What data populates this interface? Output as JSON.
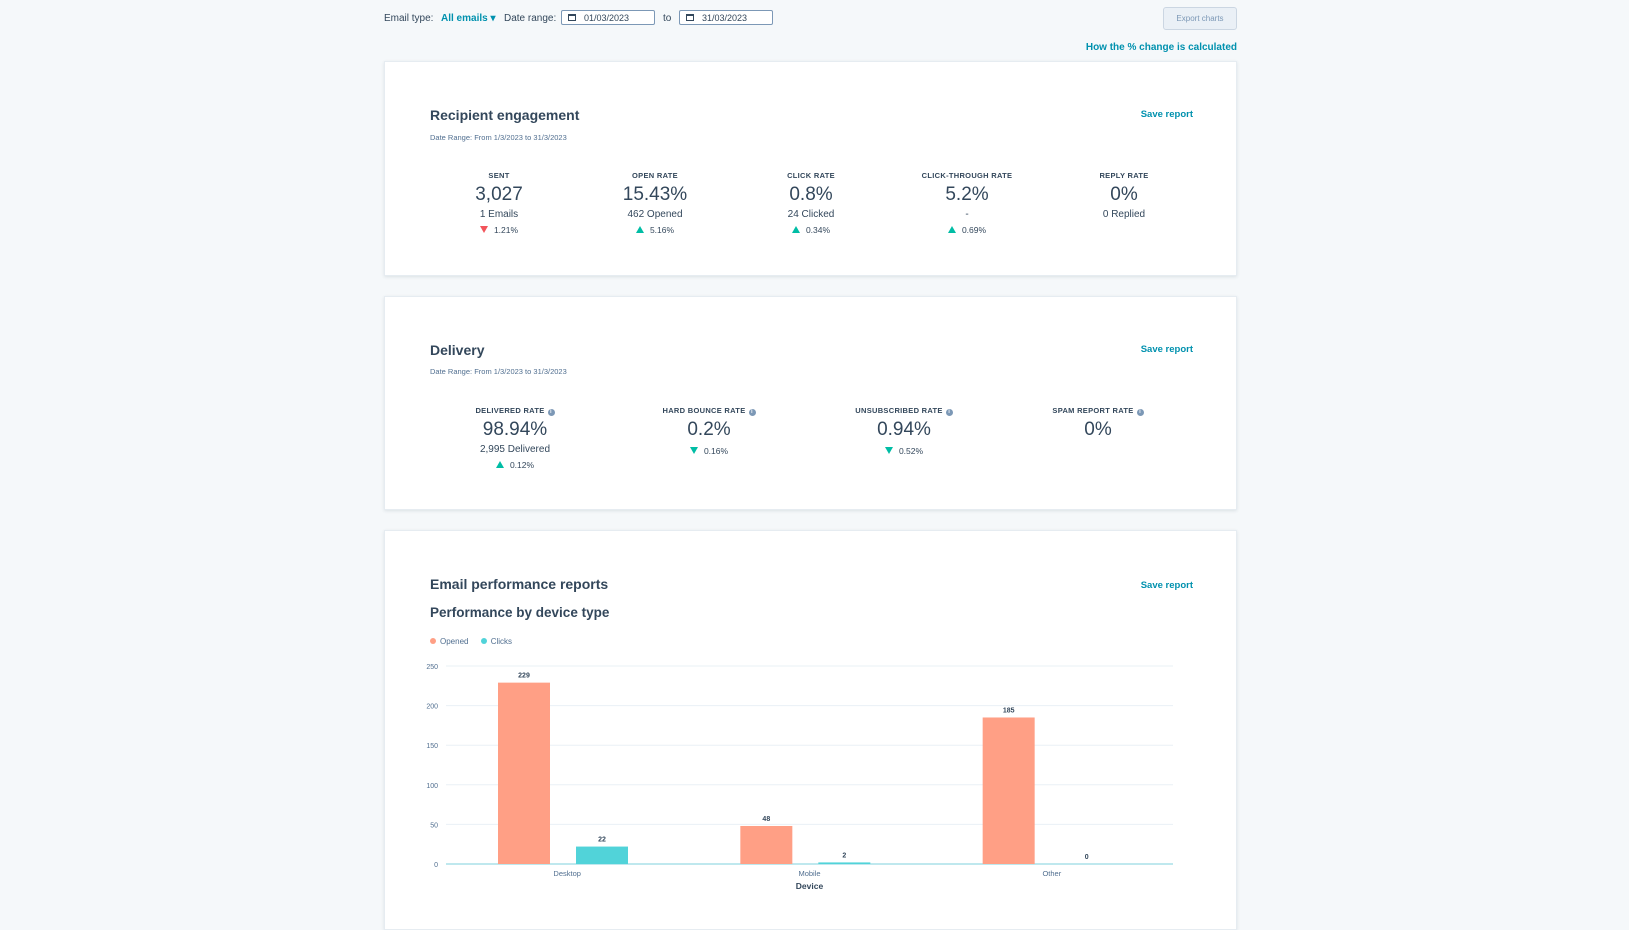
{
  "filters": {
    "email_type_label": "Email type:",
    "email_type_value": "All emails",
    "date_range_label": "Date range:",
    "date_from": "01/03/2023",
    "to_label": "to",
    "date_to": "31/03/2023",
    "export_label": "Export charts",
    "pct_change_link": "How the % change is calculated"
  },
  "engagement": {
    "title": "Recipient engagement",
    "date_range": "Date Range: From 1/3/2023 to 31/3/2023",
    "save_label": "Save report",
    "stats": [
      {
        "label": "SENT",
        "value": "3,027",
        "sub": "1 Emails",
        "change": "1.21%",
        "direction": "down"
      },
      {
        "label": "OPEN RATE",
        "value": "15.43%",
        "sub": "462 Opened",
        "change": "5.16%",
        "direction": "up"
      },
      {
        "label": "CLICK RATE",
        "value": "0.8%",
        "sub": "24 Clicked",
        "change": "0.34%",
        "direction": "up"
      },
      {
        "label": "CLICK-THROUGH RATE",
        "value": "5.2%",
        "sub": "-",
        "change": "0.69%",
        "direction": "up"
      },
      {
        "label": "REPLY RATE",
        "value": "0%",
        "sub": "0 Replied",
        "change": "",
        "direction": "none"
      }
    ]
  },
  "delivery": {
    "title": "Delivery",
    "date_range": "Date Range: From 1/3/2023 to 31/3/2023",
    "save_label": "Save report",
    "stats": [
      {
        "label": "DELIVERED RATE",
        "value": "98.94%",
        "sub": "2,995 Delivered",
        "change": "0.12%",
        "direction": "up"
      },
      {
        "label": "HARD BOUNCE RATE",
        "value": "0.2%",
        "sub": "",
        "change": "0.16%",
        "direction": "down-good"
      },
      {
        "label": "UNSUBSCRIBED RATE",
        "value": "0.94%",
        "sub": "",
        "change": "0.52%",
        "direction": "down-good"
      },
      {
        "label": "SPAM REPORT RATE",
        "value": "0%",
        "sub": "",
        "change": "",
        "direction": "none"
      }
    ]
  },
  "performance": {
    "title": "Email performance reports",
    "save_label": "Save report",
    "chart_title": "Performance by device type"
  },
  "colors": {
    "opened": "#ff9f85",
    "clicks": "#51d3d9",
    "accent": "#0091ae",
    "up": "#00bda5",
    "down": "#f2545b"
  },
  "chart_data": {
    "type": "bar",
    "categories": [
      "Desktop",
      "Mobile",
      "Other"
    ],
    "series": [
      {
        "name": "Opened",
        "values": [
          229,
          48,
          185
        ]
      },
      {
        "name": "Clicks",
        "values": [
          22,
          2,
          0
        ]
      }
    ],
    "xlabel": "Device",
    "ylabel": "",
    "ylim": [
      0,
      250
    ],
    "yticks": [
      0,
      50,
      100,
      150,
      200,
      250
    ],
    "legend": "top-left",
    "grid": true
  }
}
